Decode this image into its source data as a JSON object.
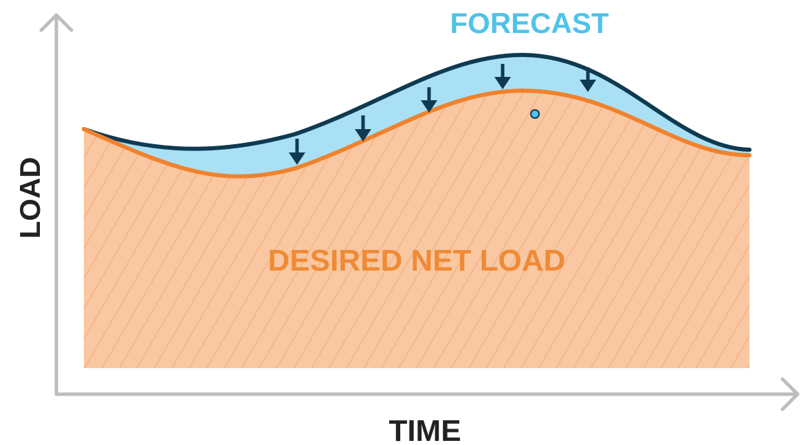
{
  "labels": {
    "forecast": "FORECAST",
    "desired_net_load": "DESIRED NET LOAD",
    "y_axis": "LOAD",
    "x_axis": "TIME"
  },
  "colors": {
    "axis": "#bdbdbd",
    "forecast_line": "#0e3a52",
    "forecast_fill": "#a9e0f5",
    "forecast_text": "#4fc3ea",
    "net_load_line": "#f0822d",
    "net_load_fill": "#f9c7a1",
    "hatch": "#f4a872",
    "net_load_text": "#ef8a35",
    "axis_text": "#222222",
    "arrow": "#0e3a52"
  },
  "icons": {
    "reduction_arrow": "down-arrow-icon",
    "marker": "dot-marker"
  }
}
